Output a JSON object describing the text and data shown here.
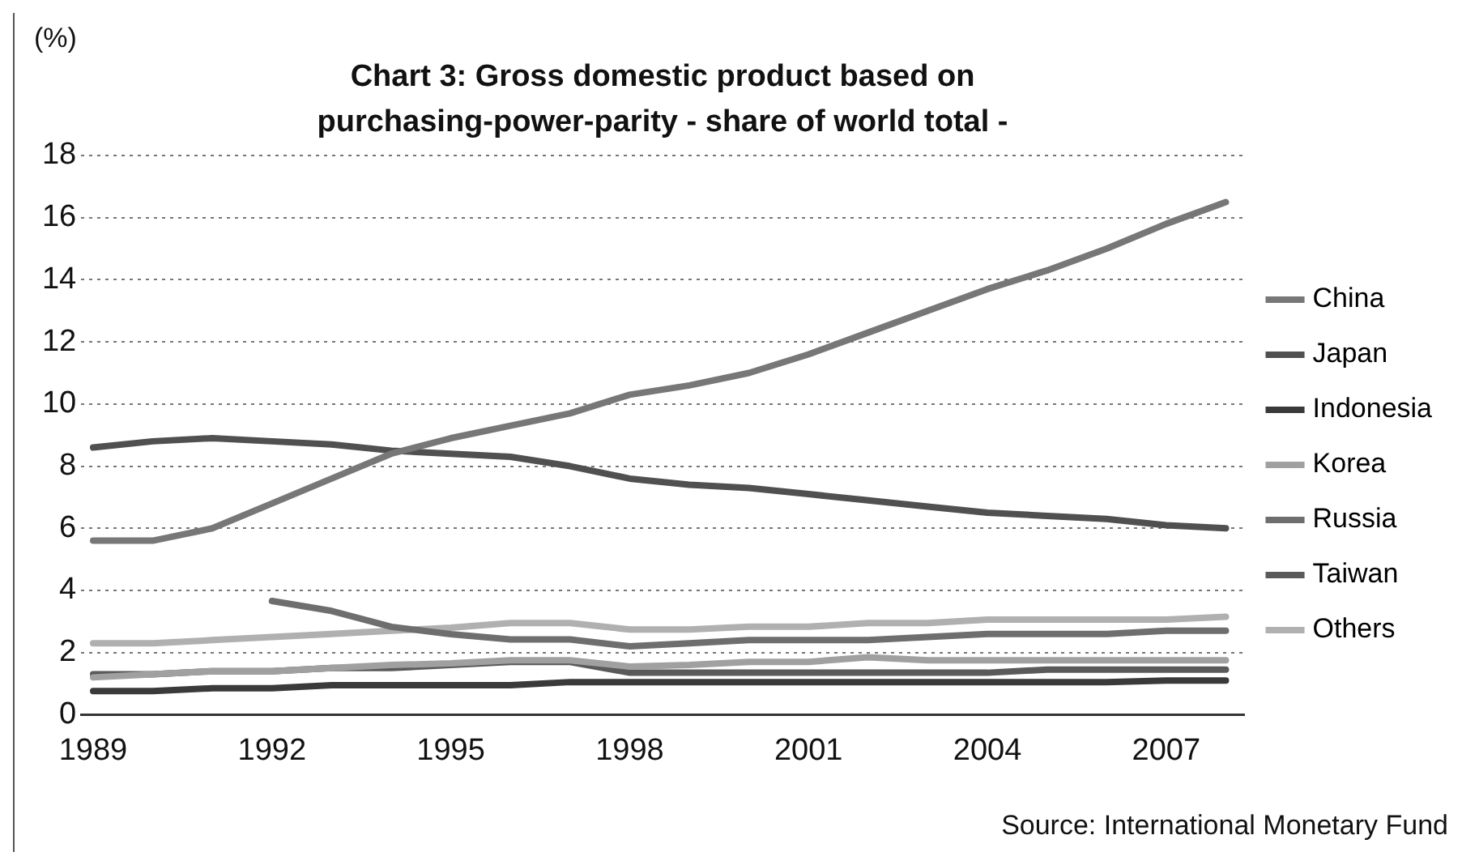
{
  "chart_data": {
    "type": "line",
    "title": "Chart 3: Gross domestic product based on purchasing-power-parity - share of world total -",
    "ylabel": "(%)",
    "x": [
      1989,
      1990,
      1991,
      1992,
      1993,
      1994,
      1995,
      1996,
      1997,
      1998,
      1999,
      2000,
      2001,
      2002,
      2003,
      2004,
      2005,
      2006,
      2007,
      2008
    ],
    "series": [
      {
        "name": "China",
        "color": "#777777",
        "values": [
          5.6,
          5.6,
          6.0,
          6.8,
          7.6,
          8.4,
          8.9,
          9.3,
          9.7,
          10.3,
          10.6,
          11.0,
          11.6,
          12.3,
          13.0,
          13.7,
          14.3,
          15.0,
          15.8,
          16.5
        ]
      },
      {
        "name": "Japan",
        "color": "#505050",
        "values": [
          8.6,
          8.8,
          8.9,
          8.8,
          8.7,
          8.5,
          8.4,
          8.3,
          8.0,
          7.6,
          7.4,
          7.3,
          7.1,
          6.9,
          6.7,
          6.5,
          6.4,
          6.3,
          6.1,
          6.0
        ]
      },
      {
        "name": "Indonesia",
        "color": "#3a3a3a",
        "values": [
          0.76,
          0.76,
          0.85,
          0.85,
          0.95,
          0.95,
          0.95,
          0.95,
          1.05,
          1.05,
          1.05,
          1.05,
          1.05,
          1.05,
          1.05,
          1.05,
          1.05,
          1.05,
          1.1,
          1.1
        ]
      },
      {
        "name": "Korea",
        "color": "#a0a0a0",
        "values": [
          1.2,
          1.3,
          1.4,
          1.4,
          1.5,
          1.6,
          1.65,
          1.75,
          1.75,
          1.55,
          1.6,
          1.7,
          1.7,
          1.85,
          1.75,
          1.75,
          1.75,
          1.75,
          1.75,
          1.75
        ]
      },
      {
        "name": "Russia",
        "color": "#6e6e6e",
        "values": [
          null,
          null,
          null,
          3.66,
          3.34,
          2.83,
          2.59,
          2.42,
          2.42,
          2.2,
          2.3,
          2.4,
          2.4,
          2.4,
          2.5,
          2.6,
          2.6,
          2.6,
          2.7,
          2.7
        ]
      },
      {
        "name": "Taiwan",
        "color": "#5a5a5a",
        "values": [
          1.3,
          1.3,
          1.4,
          1.4,
          1.5,
          1.5,
          1.6,
          1.7,
          1.7,
          1.35,
          1.35,
          1.35,
          1.35,
          1.35,
          1.35,
          1.35,
          1.45,
          1.45,
          1.45,
          1.45
        ]
      },
      {
        "name": "Others",
        "color": "#b0b0b0",
        "values": [
          2.3,
          2.3,
          2.4,
          2.5,
          2.6,
          2.7,
          2.8,
          2.95,
          2.95,
          2.74,
          2.74,
          2.83,
          2.83,
          2.95,
          2.95,
          3.06,
          3.06,
          3.06,
          3.06,
          3.15
        ]
      }
    ],
    "xlim": [
      1988.8,
      2008.3
    ],
    "xticks": [
      1989,
      1992,
      1995,
      1998,
      2001,
      2004,
      2007
    ],
    "ylim": [
      0,
      18
    ],
    "yticks": [
      0,
      2,
      4,
      6,
      8,
      10,
      12,
      14,
      16,
      18
    ],
    "grid": "y",
    "legend": "right",
    "line_style": "solid",
    "marker": "none",
    "annotations": [
      "Source: International Monetary Fund"
    ]
  }
}
